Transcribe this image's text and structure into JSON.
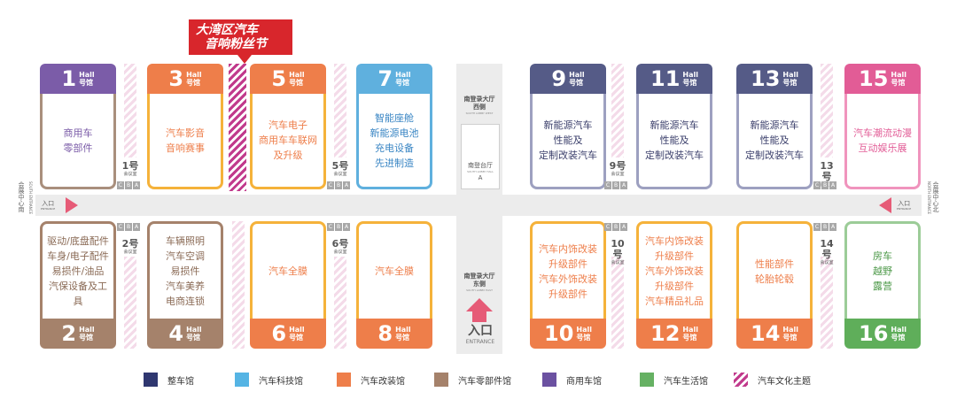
{
  "banner": {
    "line1": "大湾区汽车",
    "line2": "音响粉丝节"
  },
  "hall_label": "Hall",
  "hall_suffix": "号馆",
  "colors": {
    "whole_vehicle": "#2f3770",
    "tech": "#55b4e4",
    "modified": "#ee7e4a",
    "parts": "#a5826b",
    "commercial": "#6b51a1",
    "lifestyle": "#66b163",
    "culture": "#c13a8c",
    "accent_hall": "#f5b23a",
    "entrance_arrow": "#e65b77"
  },
  "halls_top": [
    {
      "number": "1",
      "lines": [
        "商用车",
        "零部件"
      ],
      "cap": "#7b5ca8",
      "border": "#a98f7d",
      "text": "#7b5ca8"
    },
    {
      "number": "3",
      "lines": [
        "汽车影音",
        "音响赛事"
      ],
      "cap": "#ee7e4a",
      "border": "#f5b23a",
      "text": "#ee7e4a"
    },
    {
      "number": "5",
      "lines": [
        "汽车电子",
        "商用车车联网",
        "及升级"
      ],
      "cap": "#ee7e4a",
      "border": "#f5b23a",
      "text": "#ee7e4a"
    },
    {
      "number": "7",
      "lines": [
        "智能座舱",
        "新能源电池",
        "充电设备",
        "先进制造"
      ],
      "cap": "#5fb0de",
      "border": "#5fb0de",
      "text": "#3a86c4"
    },
    {
      "number": "9",
      "lines": [
        "新能源汽车",
        "性能及",
        "定制改装汽车"
      ],
      "cap": "#555b87",
      "border": "#9da0c0",
      "text": "#3b3f6b"
    },
    {
      "number": "11",
      "lines": [
        "新能源汽车",
        "性能及",
        "定制改装汽车"
      ],
      "cap": "#555b87",
      "border": "#9da0c0",
      "text": "#3b3f6b"
    },
    {
      "number": "13",
      "lines": [
        "新能源汽车",
        "性能及",
        "定制改装汽车"
      ],
      "cap": "#555b87",
      "border": "#9da0c0",
      "text": "#3b3f6b"
    },
    {
      "number": "15",
      "lines": [
        "汽车潮流动漫",
        "互动娱乐展"
      ],
      "cap": "#e25c96",
      "border": "#f094bd",
      "text": "#e25c96"
    }
  ],
  "halls_bottom": [
    {
      "number": "2",
      "lines": [
        "驱动/底盘配件",
        "车身/电子配件",
        "易损件/油品",
        "汽保设备及工具"
      ],
      "cap": "#a5826b",
      "border": "#a5826b",
      "text": "#8a6a55"
    },
    {
      "number": "4",
      "lines": [
        "车辆照明",
        "汽车空调",
        "易损件",
        "汽车美养",
        "电商连锁"
      ],
      "cap": "#a5826b",
      "border": "#a5826b",
      "text": "#8a6a55"
    },
    {
      "number": "6",
      "lines": [
        "汽车全膜"
      ],
      "cap": "#ee7e4a",
      "border": "#f5b23a",
      "text": "#ee7e4a"
    },
    {
      "number": "8",
      "lines": [
        "汽车全膜"
      ],
      "cap": "#ee7e4a",
      "border": "#f5b23a",
      "text": "#ee7e4a"
    },
    {
      "number": "10",
      "lines": [
        "汽车内饰改装",
        "升级部件",
        "汽车外饰改装",
        "升级部件"
      ],
      "cap": "#ee7e4a",
      "border": "#f5b23a",
      "text": "#ee7e4a"
    },
    {
      "number": "12",
      "lines": [
        "汽车内饰改装",
        "升级部件",
        "汽车外饰改装",
        "升级部件",
        "汽车精品礼品"
      ],
      "cap": "#ee7e4a",
      "border": "#f5b23a",
      "text": "#ee7e4a"
    },
    {
      "number": "14",
      "lines": [
        "性能部件",
        "轮胎轮毂"
      ],
      "cap": "#ee7e4a",
      "border": "#f5b23a",
      "text": "#ee7e4a"
    },
    {
      "number": "16",
      "lines": [
        "房车",
        "越野",
        "露营"
      ],
      "cap": "#5fae5a",
      "border": "#9ccc98",
      "text": "#4b9847"
    }
  ],
  "meeting_rooms": {
    "label": "会议室",
    "suffix": "号",
    "letters": [
      "C",
      "B",
      "A"
    ],
    "top": [
      "1",
      "5",
      "9",
      "13"
    ],
    "bottom": [
      "2",
      "6",
      "10",
      "14"
    ]
  },
  "lobbies": {
    "north_title": "南登录大厅",
    "north_sub": "西侧",
    "north_en": "SOUTH LOBBY WEST",
    "meeting_a": "南登台厅",
    "meeting_a_en": "SOUTH LOBBY HALL",
    "meeting_a_letter": "A",
    "south_title": "南登录大厅",
    "south_sub": "东侧",
    "south_en": "SOUTH LOBBY EAST"
  },
  "entrances": {
    "left_label": "入口",
    "left_en": "ENTRANCE",
    "right_label": "入口",
    "right_en": "ENTRANCE",
    "main_label": "入口",
    "main_en": "ENTRANCE"
  },
  "side_labels": {
    "left_cn": "会展中心南",
    "left_en": "SOUTH ENTRANCE",
    "right_cn": "会展中心北",
    "right_en": "NORTH ENTRANCE"
  },
  "legend": [
    {
      "label": "整车馆",
      "color": "#2f3770"
    },
    {
      "label": "汽车科技馆",
      "color": "#55b4e4"
    },
    {
      "label": "汽车改装馆",
      "color": "#ee7e4a"
    },
    {
      "label": "汽车零部件馆",
      "color": "#a5826b"
    },
    {
      "label": "商用车馆",
      "color": "#6b51a1"
    },
    {
      "label": "汽车生活馆",
      "color": "#66b163"
    },
    {
      "label": "汽车文化主题",
      "color": "striped"
    }
  ]
}
